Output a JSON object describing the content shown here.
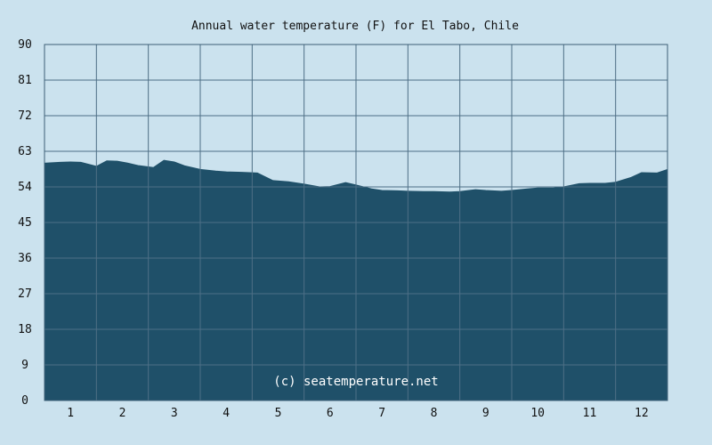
{
  "chart_data": {
    "type": "area",
    "title": "Annual water temperature (F) for El Tabo, Chile",
    "credit": "(c) seatemperature.net",
    "xlabel": "",
    "ylabel": "",
    "categories": [
      "1",
      "2",
      "3",
      "4",
      "5",
      "6",
      "7",
      "8",
      "9",
      "10",
      "11",
      "12"
    ],
    "yticks": [
      "0",
      "9",
      "18",
      "27",
      "36",
      "45",
      "54",
      "63",
      "72",
      "81",
      "90"
    ],
    "ylim": [
      0,
      90
    ],
    "grid": true,
    "colors": {
      "background": "#cbe2ee",
      "fill": "#1f5069"
    },
    "series": [
      {
        "x": [
          0.5,
          0.8,
          1.0,
          1.2,
          1.5,
          1.7,
          1.9,
          2.1,
          2.3,
          2.6,
          2.8,
          3.0,
          3.2,
          3.5,
          3.8,
          4.0,
          4.3,
          4.6,
          4.9,
          5.2,
          5.5,
          5.8,
          6.0,
          6.3,
          6.5,
          6.8,
          7.0,
          7.3,
          7.5,
          7.8,
          8.0,
          8.3,
          8.5,
          8.8,
          9.0,
          9.3,
          9.5,
          9.8,
          10.0,
          10.3,
          10.5,
          10.8,
          11.0,
          11.3,
          11.5,
          11.8,
          12.0,
          12.3,
          12.5
        ],
        "values": [
          60.0,
          60.2,
          60.3,
          60.2,
          59.2,
          60.6,
          60.5,
          60.0,
          59.4,
          58.9,
          60.7,
          60.3,
          59.3,
          58.4,
          58.0,
          57.8,
          57.7,
          57.5,
          55.6,
          55.3,
          54.7,
          54.0,
          54.1,
          55.1,
          54.5,
          53.5,
          53.1,
          53.0,
          52.9,
          52.8,
          52.8,
          52.7,
          52.8,
          53.3,
          53.1,
          52.9,
          53.1,
          53.5,
          53.7,
          53.7,
          54.0,
          54.8,
          54.9,
          54.9,
          55.2,
          56.4,
          57.6,
          57.5,
          58.4
        ]
      }
    ]
  }
}
